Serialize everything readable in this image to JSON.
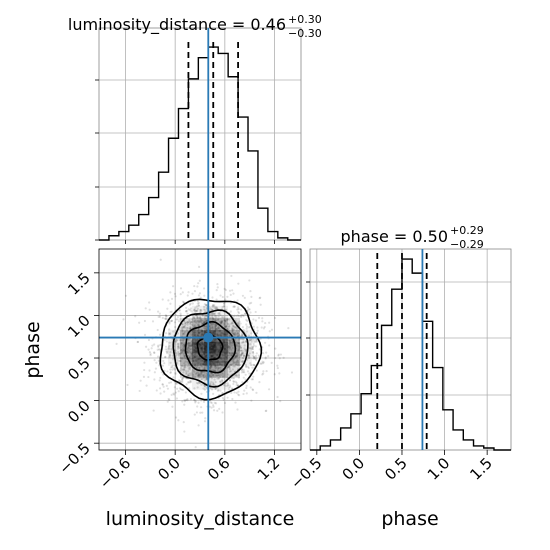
{
  "chart_data": {
    "type": "corner",
    "parameters": [
      "luminosity_distance",
      "phase"
    ],
    "colors": {
      "truth": "#2a7ab5",
      "hist": "#000000",
      "density": "#000000",
      "grid": "#b0b0b0"
    },
    "truths": {
      "luminosity_distance": 0.4,
      "phase": 0.74
    },
    "marginals": [
      {
        "parameter": "luminosity_distance",
        "title": "luminosity_distance = 0.46",
        "title_sup": "+0.30",
        "title_sub": "−0.30",
        "quantiles": [
          0.16,
          0.46,
          0.76
        ],
        "xlim": [
          -0.92,
          1.52
        ],
        "ylim": [
          0,
          1.0
        ],
        "bin_edges": [
          -0.92,
          -0.8,
          -0.68,
          -0.56,
          -0.44,
          -0.32,
          -0.2,
          -0.08,
          0.04,
          0.16,
          0.28,
          0.4,
          0.52,
          0.64,
          0.76,
          0.88,
          1.0,
          1.12,
          1.24,
          1.36,
          1.52
        ],
        "counts": [
          0.0,
          0.02,
          0.04,
          0.07,
          0.12,
          0.2,
          0.32,
          0.48,
          0.62,
          0.76,
          0.86,
          0.91,
          0.88,
          0.77,
          0.58,
          0.42,
          0.15,
          0.04,
          0.01,
          0.0
        ]
      },
      {
        "parameter": "phase",
        "title": "phase = 0.50",
        "title_sup": "+0.29",
        "title_sub": "−0.29",
        "quantiles": [
          0.21,
          0.5,
          0.79
        ],
        "xlim": [
          -0.58,
          1.78
        ],
        "ylim": [
          0,
          1.0
        ],
        "bin_edges": [
          -0.58,
          -0.46,
          -0.34,
          -0.22,
          -0.1,
          0.02,
          0.14,
          0.26,
          0.38,
          0.5,
          0.62,
          0.74,
          0.86,
          0.98,
          1.1,
          1.22,
          1.34,
          1.46,
          1.58,
          1.7,
          1.78
        ],
        "counts": [
          0.0,
          0.02,
          0.05,
          0.11,
          0.18,
          0.28,
          0.42,
          0.62,
          0.8,
          0.95,
          0.88,
          0.64,
          0.41,
          0.2,
          0.1,
          0.05,
          0.02,
          0.01,
          0.0,
          0.0
        ]
      }
    ],
    "joint": {
      "x_parameter": "luminosity_distance",
      "y_parameter": "phase",
      "xlim": [
        -0.92,
        1.52
      ],
      "ylim": [
        -0.58,
        1.78
      ],
      "center": [
        0.42,
        0.62
      ],
      "spread": [
        0.3,
        0.29
      ],
      "contour_levels_sigma": [
        0.5,
        1.0,
        1.5,
        2.0
      ]
    },
    "xlabels": [
      "luminosity_distance",
      "phase"
    ],
    "ylabels": [
      "",
      "phase"
    ],
    "xticks": [
      {
        "values": [
          -0.6,
          0.0,
          0.6,
          1.2
        ],
        "labels": [
          "−0.6",
          "0.0",
          "0.6",
          "1.2"
        ]
      },
      {
        "values": [
          -0.5,
          0.0,
          0.5,
          1.0,
          1.5
        ],
        "labels": [
          "−0.5",
          "0.0",
          "0.5",
          "1.0",
          "1.5"
        ]
      }
    ],
    "yticks": {
      "values": [
        -0.5,
        0.0,
        0.5,
        1.0,
        1.5
      ],
      "labels": [
        "−0.5",
        "0.0",
        "0.5",
        "1.0",
        "1.5"
      ]
    },
    "grid": true
  }
}
